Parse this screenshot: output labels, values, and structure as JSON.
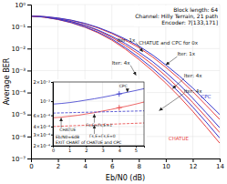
{
  "chart_data": [
    {
      "type": "line",
      "title": "Block length: 64\nChannel: Hilly Terrain, 21 path\nEncoder: 7[133,171]",
      "xlabel": "Eb/N0 (dB)",
      "ylabel": "Average BER",
      "x": [
        0,
        1,
        2,
        3,
        4,
        5,
        6,
        7,
        8,
        9,
        10,
        11,
        12,
        13,
        14
      ],
      "series": [
        {
          "color": "#e84040",
          "values": [
            0.3,
            0.28,
            0.24,
            0.19,
            0.135,
            0.085,
            0.048,
            0.024,
            0.011,
            0.0042,
            0.0014,
            0.00042,
            0.00011,
            2.6e-05,
            6e-06
          ]
        },
        {
          "color": "#3535cc",
          "values": [
            0.3,
            0.285,
            0.245,
            0.195,
            0.14,
            0.09,
            0.052,
            0.027,
            0.013,
            0.0052,
            0.0018,
            0.00057,
            0.00016,
            4e-05,
            1e-05
          ]
        },
        {
          "color": "#e84040",
          "values": [
            0.3,
            0.27,
            0.22,
            0.165,
            0.11,
            0.064,
            0.032,
            0.014,
            0.0055,
            0.0019,
            0.00057,
            0.00015,
            3.5e-05,
            7.5e-06,
            1.5e-06
          ]
        },
        {
          "color": "#3535cc",
          "values": [
            0.3,
            0.275,
            0.225,
            0.17,
            0.115,
            0.068,
            0.036,
            0.017,
            0.007,
            0.0026,
            0.00082,
            0.00023,
            5.5e-05,
            1.2e-05,
            2.5e-06
          ]
        },
        {
          "color": "#e84040",
          "values": [
            0.3,
            0.265,
            0.208,
            0.148,
            0.093,
            0.051,
            0.024,
            0.0094,
            0.0032,
            0.00098,
            0.00027,
            6.5e-05,
            1.4e-05,
            2.7e-06,
            5e-07
          ]
        },
        {
          "color": "#3535cc",
          "values": [
            0.3,
            0.268,
            0.212,
            0.152,
            0.097,
            0.055,
            0.027,
            0.011,
            0.004,
            0.0013,
            0.00038,
            0.0001,
            2.2e-05,
            4.5e-06,
            8.5e-07
          ]
        }
      ],
      "xlim": [
        0,
        14
      ],
      "ylim": [
        1e-07,
        1
      ],
      "xticks": [
        0,
        2,
        4,
        6,
        8,
        10,
        12,
        14
      ],
      "yticks": [
        {
          "value": 1e-07,
          "label": "10⁻⁷"
        },
        {
          "value": 1e-06,
          "label": "10⁻⁶"
        },
        {
          "value": 1e-05,
          "label": "10⁻⁵"
        },
        {
          "value": 0.0001,
          "label": "10⁻⁴"
        },
        {
          "value": 0.001,
          "label": "10⁻³"
        },
        {
          "value": 0.01,
          "label": "10⁻²"
        },
        {
          "value": 0.1,
          "label": "10⁻¹"
        },
        {
          "value": 1,
          "label": "10⁰"
        }
      ],
      "log": "y",
      "grid": true,
      "annotations": [
        {
          "text": "CHATUE and CPC for 0x",
          "x": 8.0,
          "y": 0.018
        },
        {
          "text": "CPC",
          "x": 12.6,
          "y": 6e-05,
          "color": "#3535cc"
        },
        {
          "text": "CHATUE",
          "x": 10.2,
          "y": 8e-07,
          "color": "#e84040"
        },
        {
          "text": "Iter: 1x",
          "x": 10.85,
          "y": 0.0055,
          "arrow_to": [
            10.0,
            0.0018
          ]
        },
        {
          "text": "Iter: 4x",
          "x": 11.35,
          "y": 0.00055,
          "arrow_to": [
            10.5,
            0.00015
          ]
        },
        {
          "text": "Iter: 4x",
          "x": 11.35,
          "y": 6.5e-05,
          "arrow_to": [
            9.5,
            1.5e-05
          ]
        },
        {
          "text": "Iter: 1x",
          "x": 6.4,
          "y": 0.024,
          "arrow_to": [
            8.3,
            0.007
          ]
        },
        {
          "text": "Iter: 4x",
          "x": 6.0,
          "y": 0.0022,
          "arrow_to": [
            7.8,
            0.0006
          ]
        }
      ]
    },
    {
      "type": "line",
      "x": [
        0,
        0.5,
        1,
        1.5,
        2,
        2.5,
        3,
        3.5,
        4,
        4.5,
        5,
        5.5
      ],
      "series": [
        {
          "color": "#e84040",
          "line_style": "solid",
          "values": [
            0.00055,
            0.00056,
            0.00058,
            0.0006,
            0.00063,
            0.00066,
            0.0007,
            0.00074,
            0.00079,
            0.00084,
            0.0009,
            0.00097
          ]
        },
        {
          "color": "#3535cc",
          "line_style": "solid",
          "values": [
            0.0009,
            0.00092,
            0.00095,
            0.00099,
            0.00104,
            0.00109,
            0.00115,
            0.00122,
            0.0013,
            0.00138,
            0.00147,
            0.00157
          ]
        },
        {
          "color": "#e84040",
          "line_style": "dashed",
          "values": [
            0.0004,
            0.000405,
            0.00041,
            0.000415,
            0.00042,
            0.000425,
            0.00043,
            0.000435,
            0.00044,
            0.000445,
            0.00045,
            0.000455
          ]
        },
        {
          "color": "#3535cc",
          "line_style": "dashed",
          "values": [
            0.00065,
            0.000655,
            0.00066,
            0.000665,
            0.00067,
            0.000675,
            0.00068,
            0.000685,
            0.00069,
            0.000695,
            0.0007,
            0.000705
          ]
        },
        {
          "type": "scatter",
          "marker": "plus",
          "color": "#e84040",
          "x": [
            4
          ],
          "values": [
            0.00079
          ]
        },
        {
          "type": "scatter",
          "marker": "plus",
          "color": "#3535cc",
          "x": [
            4
          ],
          "values": [
            0.0013
          ]
        }
      ],
      "xlim": [
        0,
        5.5
      ],
      "ylim": [
        0.0002,
        0.002
      ],
      "xticks": [
        0,
        1,
        2,
        3,
        4,
        5
      ],
      "yticks": [
        {
          "value": 0.0002,
          "label": "2×10⁻⁴"
        },
        {
          "value": 0.0003,
          "label": "3×10⁻⁴"
        },
        {
          "value": 0.0004,
          "label": "4×10⁻⁴"
        },
        {
          "value": 0.0006,
          "label": "6×10⁻⁴"
        },
        {
          "value": 0.001,
          "label": "10⁻³"
        },
        {
          "value": 0.002,
          "label": "2×10⁻³"
        }
      ],
      "log": "y",
      "grid": true,
      "annotations": [
        {
          "text": "CHATUE",
          "x": 0.4,
          "y": 0.00035,
          "arrow_to": [
            0.5,
            0.00055
          ]
        },
        {
          "text": "Γs,E=Γs,E=1",
          "x": 2.0,
          "y": 0.00042,
          "arrow_to": [
            2.5,
            0.00063
          ]
        },
        {
          "text": "Γs,E=Γs,E=0",
          "x": 2.2,
          "y": 0.00028,
          "arrow_to": [
            2.5,
            0.00042
          ]
        },
        {
          "text": "CPC",
          "x": 4.0,
          "y": 0.0017,
          "arrow_to": [
            4.5,
            0.00138
          ]
        }
      ],
      "footnotes": [
        "Eb/N0=6dB",
        "EXIT CHART of CHATUE and CPC"
      ]
    }
  ]
}
